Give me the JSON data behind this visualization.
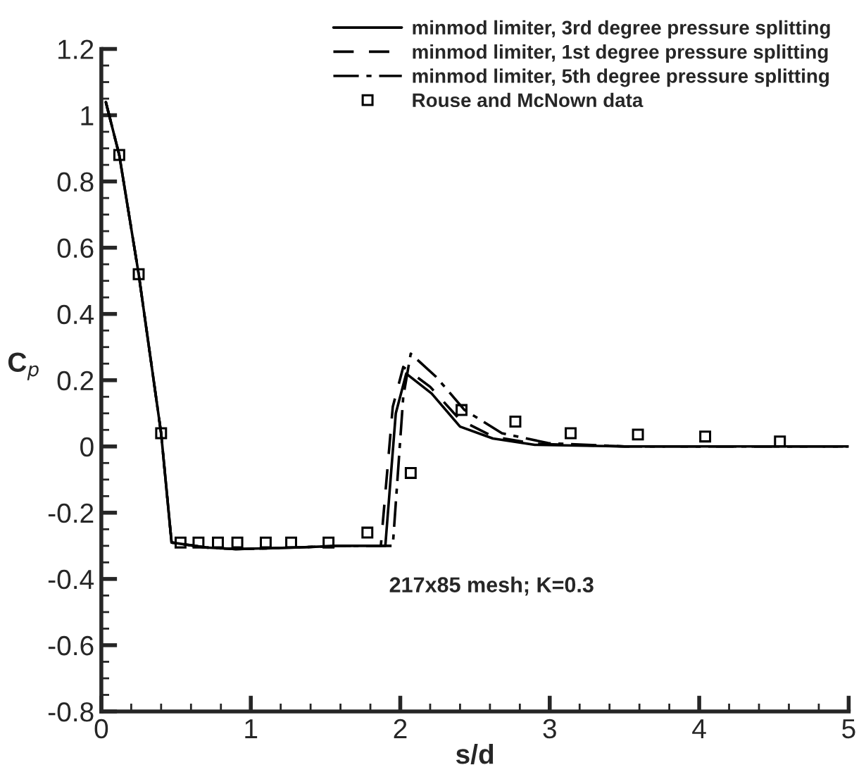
{
  "chart_data": {
    "type": "line",
    "xlabel": "s/d",
    "ylabel": "C$_{p}$",
    "xlim": [
      0,
      5
    ],
    "ylim": [
      -0.8,
      1.2
    ],
    "xticks": [
      0,
      1,
      2,
      3,
      4,
      5
    ],
    "yticks": [
      -0.8,
      -0.6,
      -0.4,
      -0.2,
      0,
      0.2,
      0.4,
      0.6,
      0.8,
      1,
      1.2
    ],
    "grid": false,
    "legend": "top right",
    "annotations": [
      "217x85 mesh; K=0.3"
    ],
    "series": [
      {
        "name": "minmod limiter, 3rd degree pressure splitting",
        "color": "#000000",
        "line_style": "solid",
        "marker": "none",
        "x": [
          0.03,
          0.12,
          0.25,
          0.4,
          0.47,
          0.7,
          0.9,
          1.3,
          1.6,
          1.9,
          1.97,
          2.04,
          2.21,
          2.4,
          2.62,
          2.9,
          3.5,
          5
        ],
        "values": [
          1.04,
          0.88,
          0.52,
          0.04,
          -0.29,
          -0.305,
          -0.31,
          -0.305,
          -0.3,
          -0.3,
          0.1,
          0.22,
          0.16,
          0.06,
          0.024,
          0.005,
          0,
          0
        ]
      },
      {
        "name": "minmod limiter, 1st degree pressure splitting",
        "color": "#000000",
        "line_style": "dashed",
        "marker": "none",
        "x": [
          0.03,
          0.12,
          0.25,
          0.4,
          0.47,
          0.7,
          0.9,
          1.3,
          1.6,
          1.87,
          1.95,
          2.02,
          2.2,
          2.4,
          2.62,
          2.9,
          3.5,
          5
        ],
        "values": [
          1.04,
          0.88,
          0.52,
          0.04,
          -0.29,
          -0.305,
          -0.31,
          -0.305,
          -0.3,
          -0.3,
          0.12,
          0.24,
          0.18,
          0.08,
          0.03,
          0.008,
          0,
          0
        ]
      },
      {
        "name": "minmod limiter, 5th degree pressure splitting",
        "color": "#000000",
        "line_style": "dashdot",
        "marker": "none",
        "x": [
          0.03,
          0.12,
          0.25,
          0.4,
          0.47,
          0.7,
          0.9,
          1.3,
          1.6,
          1.95,
          2.02,
          2.07,
          2.24,
          2.43,
          2.68,
          2.99,
          3.5,
          5
        ],
        "values": [
          1.04,
          0.88,
          0.52,
          0.04,
          -0.29,
          -0.305,
          -0.31,
          -0.305,
          -0.3,
          -0.3,
          0.15,
          0.28,
          0.21,
          0.11,
          0.04,
          0.01,
          0,
          0
        ]
      },
      {
        "name": "Rouse and McNown data",
        "type": "scatter",
        "color": "#000000",
        "marker": "square",
        "x": [
          0.12,
          0.25,
          0.4,
          0.53,
          0.65,
          0.78,
          0.91,
          1.1,
          1.27,
          1.52,
          1.78,
          2.07,
          2.41,
          2.77,
          3.14,
          3.59,
          4.04,
          4.54
        ],
        "values": [
          0.88,
          0.52,
          0.04,
          -0.29,
          -0.29,
          -0.29,
          -0.29,
          -0.29,
          -0.29,
          -0.29,
          -0.26,
          -0.08,
          0.11,
          0.075,
          0.04,
          0.036,
          0.03,
          0.015
        ]
      }
    ]
  }
}
